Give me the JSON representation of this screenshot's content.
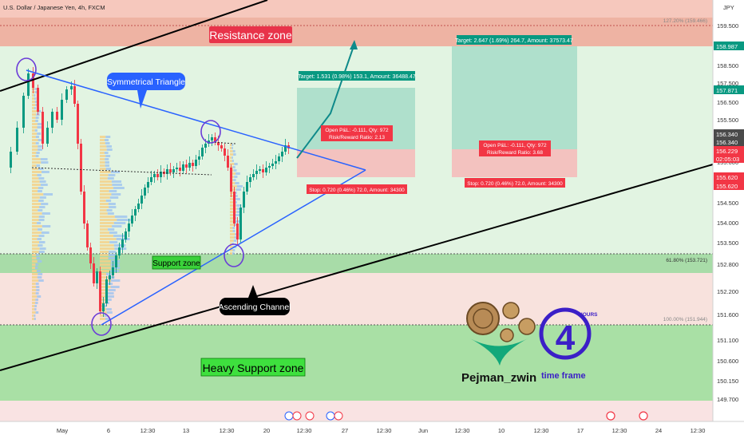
{
  "header": {
    "symbol_title": "U.S. Dollar / Japanese Yen, 4h, FXCM",
    "currency": "JPY"
  },
  "chart_data": {
    "type": "candlestick",
    "symbol": "USD/JPY",
    "timeframe": "4h",
    "x_labels": [
      "May",
      "6",
      "12:30",
      "13",
      "12:30",
      "20",
      "12:30",
      "27",
      "12:30",
      "Jun",
      "12:30",
      "10",
      "12:30",
      "17",
      "12:30",
      "24",
      "12:30"
    ],
    "y_ticks": [
      159.5,
      158.5,
      157.5,
      156.5,
      155.5,
      155.0,
      154.5,
      154.0,
      153.5,
      152.8,
      152.2,
      151.6,
      151.1,
      150.6,
      150.15,
      149.7
    ],
    "y_tick_labels": [
      "159.500",
      "158.500",
      "157.500",
      "156.500",
      "155.500",
      "155.000",
      "154.500",
      "154.000",
      "153.500",
      "152.800",
      "152.200",
      "151.600",
      "151.100",
      "150.600",
      "150.150",
      "149.700"
    ],
    "ylim": [
      149.6,
      160.4
    ],
    "price_flags": [
      {
        "label": "158.987",
        "value": 158.987,
        "color": "#089981"
      },
      {
        "label": "157.871",
        "value": 157.871,
        "color": "#089981"
      },
      {
        "label": "156.340",
        "value": 156.34,
        "color": "#4a4a4a"
      },
      {
        "label": "156.340",
        "value": 156.13,
        "color": "#4a4a4a"
      },
      {
        "label": "156.229",
        "value": 155.92,
        "color": "#f23645"
      },
      {
        "label": "02:05:03",
        "value": 155.71,
        "color": "#f23645"
      },
      {
        "label": "155.620",
        "value": 155.46,
        "color": "#f23645"
      },
      {
        "label": "155.620",
        "value": 155.22,
        "color": "#f23645"
      }
    ],
    "fib_levels": [
      {
        "label": "127.20% (159.466)",
        "value": 159.466
      },
      {
        "label": "61.80% (153.721)",
        "value": 153.721
      },
      {
        "label": "100.00% (151.944)",
        "value": 151.944
      }
    ],
    "zones": [
      {
        "label": "Resistance zone",
        "top": 160.4,
        "bottom": 158.95
      },
      {
        "label": "Support zone",
        "top": 153.8,
        "bottom": 153.35
      },
      {
        "label": "Heavy Support zone",
        "top": 151.95,
        "bottom": 150.3
      }
    ],
    "annotations": [
      "Symmetrical Triangle",
      "Ascending Channel"
    ],
    "positions": [
      {
        "target": "Target: 1.531 (0.98%) 153.1, Amount: 36488.47",
        "pnl": "Open P&L: -0.111, Qty: 972",
        "rr": "Risk/Reward Ratio: 2.13",
        "stop": "Stop: 0.720 (0.46%) 72.0, Amount: 34300"
      },
      {
        "target": "Target: 2.647 (1.69%) 264.7, Amount: 37573.47",
        "pnl": "Open P&L: -0.111, Qty: 972",
        "rr": "Risk/Reward Ratio: 3.68",
        "stop": "Stop: 0.720 (0.46%) 72.0, Amount: 34300"
      }
    ]
  },
  "logo": {
    "author": "Pejman_zwin",
    "caption": "time frame",
    "badge_number": "4",
    "badge_text": "HOURS"
  },
  "colors": {
    "resistance": "#f1b8a8",
    "support": "#a8e0a8",
    "trend": "#2962ff",
    "green_box": "#9fd9c6",
    "red_box": "#f4b6b6"
  }
}
